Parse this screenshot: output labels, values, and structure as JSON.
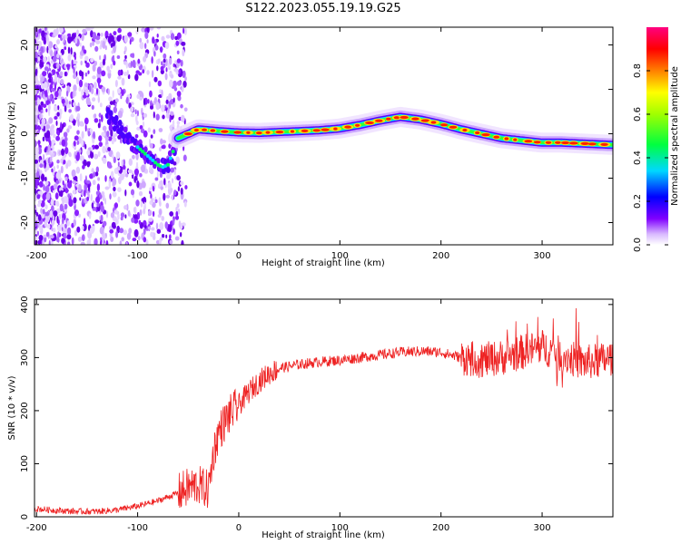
{
  "figure": {
    "title": "S122.2023.055.19.19.G25"
  },
  "chart_data": [
    {
      "type": "heatmap",
      "xlabel": "Height of straight line (km)",
      "ylabel": "Frequency (Hz)",
      "xlim": [
        -202,
        370
      ],
      "ylim": [
        -25,
        24
      ],
      "x_ticks": [
        -200,
        -100,
        0,
        100,
        200,
        300
      ],
      "y_ticks": [
        -20,
        -10,
        0,
        10,
        20
      ],
      "grid": false,
      "colorbar": {
        "label": "Normalized spectral amplitude",
        "range": [
          0,
          1
        ],
        "ticks": [
          0.0,
          0.2,
          0.4,
          0.6,
          0.8
        ],
        "colormap": [
          "#ffffff",
          "#c8a8ff",
          "#6a00ff",
          "#0000ff",
          "#00e5ff",
          "#00ff00",
          "#ffff00",
          "#ff8000",
          "#ff0000",
          "#ff0090"
        ]
      },
      "ridge": {
        "x": [
          -60,
          -50,
          -40,
          -30,
          -20,
          0,
          20,
          40,
          60,
          80,
          100,
          120,
          140,
          160,
          180,
          200,
          220,
          240,
          260,
          280,
          300,
          320,
          340,
          360,
          370
        ],
        "y": [
          -1,
          0,
          1,
          0.8,
          0.6,
          0.3,
          0.2,
          0.4,
          0.6,
          0.8,
          1.2,
          2,
          3,
          3.8,
          3.2,
          2.2,
          1,
          0,
          -1,
          -1.5,
          -2,
          -2,
          -2.2,
          -2.4,
          -2.5
        ]
      },
      "dip": {
        "x": [
          -130,
          -120,
          -110,
          -100,
          -90,
          -80,
          -75,
          -70,
          -65,
          -60
        ],
        "y": [
          4,
          2,
          -1,
          -3,
          -5,
          -7,
          -7.5,
          -7,
          -4,
          -1
        ]
      }
    },
    {
      "type": "line",
      "xlabel": "Height of straight line (km)",
      "ylabel": "SNR (10 * v/v)",
      "xlim": [
        -202,
        370
      ],
      "ylim": [
        0,
        410
      ],
      "x_ticks": [
        -200,
        -100,
        0,
        100,
        200,
        300
      ],
      "y_ticks": [
        0,
        100,
        200,
        300,
        400
      ],
      "grid": false,
      "series": [
        {
          "color": "#ee2222",
          "x": [
            -200,
            -180,
            -160,
            -140,
            -120,
            -100,
            -80,
            -60,
            -50,
            -40,
            -30,
            -25,
            -20,
            -10,
            0,
            10,
            20,
            30,
            40,
            60,
            80,
            100,
            120,
            140,
            160,
            180,
            200,
            220,
            240,
            260,
            280,
            300,
            320,
            340,
            360,
            370
          ],
          "y": [
            15,
            12,
            10,
            10,
            13,
            20,
            30,
            45,
            55,
            60,
            50,
            120,
            160,
            190,
            210,
            235,
            255,
            270,
            280,
            287,
            292,
            295,
            300,
            305,
            310,
            312,
            310,
            300,
            295,
            300,
            310,
            320,
            305,
            290,
            295,
            300
          ]
        }
      ]
    }
  ]
}
